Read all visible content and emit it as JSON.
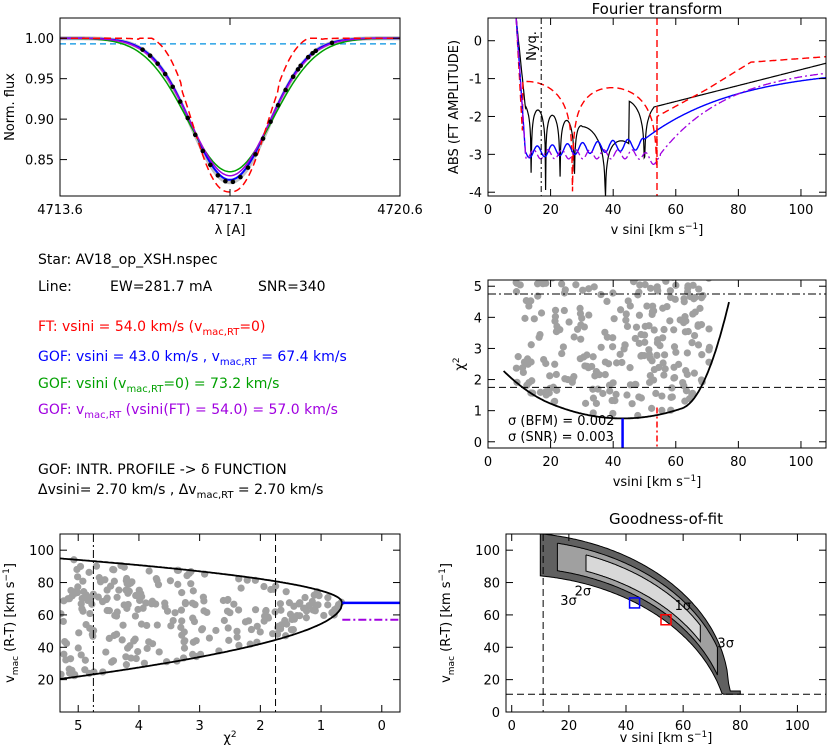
{
  "colors": {
    "ft": "#ff0000",
    "gof": "#0000ff",
    "gof_nomac": "#00a000",
    "gof_vsinift": "#a000e0",
    "obs": "#c0c0c0",
    "continuum": "#0090e0",
    "points": "#a0a0a0"
  },
  "info": {
    "star": "Star: AV18_op_XSH.nspec",
    "line_label": "Line:",
    "line_ew": "EW=281.7 mA",
    "line_snr": "SNR=340",
    "ft": "FT:  vsini = 54.0 km/s   (v",
    "ft_sub": "mac,RT",
    "ft_tail": "=0)",
    "gof1": "GOF: vsini = 43.0 km/s  , v",
    "gof1_sub": "mac,RT",
    "gof1_tail": " = 67.4 km/s",
    "gof2": "GOF: vsini (v",
    "gof2_sub": "mac,RT",
    "gof2_tail": "=0) = 73.2 km/s",
    "gof3": "GOF: v",
    "gof3_sub": "mac,RT",
    "gof3_tail": " (vsini(FT) = 54.0) = 57.0 km/s",
    "intr": "GOF: INTR. PROFILE -> δ FUNCTION",
    "dv1": "Δvsini= 2.70 km/s ,  Δv",
    "dv1_sub": "mac,RT",
    "dv1_tail": " = 2.70 km/s"
  },
  "chart_data": [
    {
      "id": "profile",
      "type": "line",
      "title": "",
      "xlabel": "λ [A]",
      "ylabel": "Norm. flux",
      "xlim": [
        4713.6,
        4720.6
      ],
      "ylim": [
        0.805,
        1.025
      ],
      "xticks": [
        4713.6,
        4717.1,
        4720.6
      ],
      "yticks": [
        0.85,
        0.9,
        0.95,
        1.0
      ],
      "ytick_labels": [
        "0.85",
        "0.90",
        "0.95",
        "1.00"
      ],
      "continuum": 0.993,
      "line_center": 4717.1,
      "models": [
        {
          "key": "obs",
          "depth": 0.178,
          "sigma": 0.8,
          "style": "solid",
          "width": 4
        },
        {
          "key": "gof",
          "depth": 0.175,
          "sigma": 0.8,
          "style": "solid",
          "width": 2
        },
        {
          "key": "gof_nomac",
          "depth": 0.165,
          "sigma": 0.88,
          "style": "solid",
          "width": 1.5
        },
        {
          "key": "gof_vsinift",
          "depth": 0.17,
          "sigma": 0.82,
          "style": "solid",
          "width": 1.5
        },
        {
          "key": "ft",
          "depth": 0.19,
          "sigma": 0.72,
          "style": "dash",
          "width": 1.5
        }
      ]
    },
    {
      "id": "fourier",
      "type": "line",
      "title": "Fourier transform",
      "xlabel": "v sini [km s⁻¹]",
      "ylabel": "ABS (FT AMPLITUDE)",
      "xlim": [
        0,
        108
      ],
      "ylim": [
        -4.1,
        0.6
      ],
      "xticks": [
        0,
        20,
        40,
        60,
        80,
        100
      ],
      "yticks": [
        -4,
        -3,
        -2,
        -1,
        0
      ],
      "nyquist": 17,
      "nyquist_label": "Nyq.",
      "vsini_ft": 54
    },
    {
      "id": "chi2_vsini",
      "type": "scatter",
      "title": "",
      "xlabel": "vsini [km s⁻¹]",
      "ylabel": "χ²",
      "xlim": [
        0,
        108
      ],
      "ylim": [
        -0.2,
        5.2
      ],
      "xticks": [
        0,
        20,
        40,
        60,
        80,
        100
      ],
      "yticks": [
        0,
        1,
        2,
        3,
        4,
        5
      ],
      "chi2_min": 0.75,
      "best_vsini": 43,
      "ft_vsini": 54,
      "dash_level": 1.75,
      "dashdot_level": 4.75,
      "sigma_bfm": "σ (BFM) = 0.002",
      "sigma_snr": "σ (SNR) = 0.003"
    },
    {
      "id": "chi2_vmac",
      "type": "scatter",
      "title": "",
      "xlabel": "χ²",
      "ylabel": "v_mac (R-T) [km s⁻¹]",
      "xlim": [
        5.3,
        -0.3
      ],
      "ylim": [
        0,
        110
      ],
      "xticks": [
        5,
        4,
        3,
        2,
        1,
        0
      ],
      "yticks": [
        20,
        40,
        60,
        80,
        100
      ],
      "chi2_min": 0.65,
      "best_vmac": 67.4,
      "vmac_ft": 57.0,
      "dash_level": 1.75,
      "dashdot_level": 4.75
    },
    {
      "id": "gof",
      "type": "heatmap",
      "title": "Goodness-of-fit",
      "xlabel": "v sini [km s⁻¹]",
      "ylabel": "v_mac (R-T) [km s⁻¹]",
      "xlim": [
        -2,
        110
      ],
      "ylim": [
        0,
        110
      ],
      "xticks": [
        0,
        20,
        40,
        60,
        80,
        100
      ],
      "yticks": [
        0,
        20,
        40,
        60,
        80,
        100
      ],
      "vline": 11,
      "hline": 11,
      "best": [
        43,
        67.4
      ],
      "ft_point": [
        54,
        57
      ],
      "contour_labels": [
        "1σ",
        "2σ",
        "3σ",
        "3σ"
      ]
    }
  ]
}
